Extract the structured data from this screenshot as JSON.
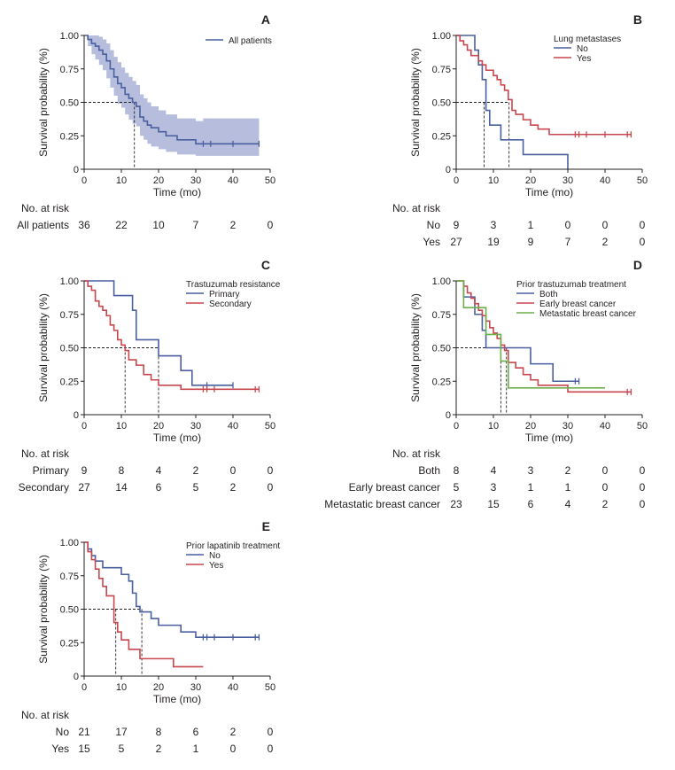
{
  "colors": {
    "blue": "#4a5fa0",
    "red": "#c8474e",
    "green": "#6cae4c",
    "band": "#b7bddc",
    "axis": "#231f20"
  },
  "chart_data": [
    {
      "type": "line",
      "subtype": "kaplan-meier",
      "panel": "A",
      "xlabel": "Time (mo)",
      "ylabel": "Survival probability (%)",
      "xlim": [
        0,
        50
      ],
      "ylim": [
        0,
        1
      ],
      "xticks": [
        "0",
        "10",
        "20",
        "30",
        "40",
        "50"
      ],
      "yticks": [
        "0",
        "0.25",
        "0.50",
        "0.75",
        "1.00"
      ],
      "legend_title": "",
      "series": [
        {
          "name": "All patients",
          "color": "blue",
          "x": [
            0,
            1,
            2,
            3,
            4,
            5,
            6,
            7,
            8,
            9,
            10,
            11,
            12,
            13,
            14,
            15,
            16,
            17,
            18,
            20,
            22,
            25,
            30,
            32,
            34,
            36,
            40,
            47
          ],
          "y": [
            1,
            0.97,
            0.94,
            0.92,
            0.89,
            0.86,
            0.81,
            0.75,
            0.69,
            0.64,
            0.61,
            0.56,
            0.53,
            0.5,
            0.47,
            0.39,
            0.36,
            0.33,
            0.31,
            0.28,
            0.25,
            0.22,
            0.19,
            0.19,
            0.19,
            0.19,
            0.19,
            0.19
          ],
          "censor": [
            32,
            34,
            40,
            47
          ],
          "ci_upper": [
            1,
            1,
            1,
            1,
            0.99,
            0.97,
            0.94,
            0.89,
            0.84,
            0.8,
            0.76,
            0.72,
            0.69,
            0.66,
            0.63,
            0.56,
            0.53,
            0.5,
            0.47,
            0.44,
            0.41,
            0.38,
            0.36,
            0.38,
            0.38,
            0.38,
            0.38,
            0.38
          ],
          "ci_lower": [
            1,
            0.92,
            0.86,
            0.82,
            0.78,
            0.74,
            0.68,
            0.61,
            0.55,
            0.49,
            0.46,
            0.41,
            0.37,
            0.34,
            0.32,
            0.25,
            0.22,
            0.19,
            0.17,
            0.15,
            0.13,
            0.11,
            0.1,
            0.1,
            0.1,
            0.1,
            0.1,
            0.1
          ]
        }
      ],
      "median_lines": [
        13.5
      ],
      "risk_table": {
        "header": "No. at risk",
        "columns": [
          "0",
          "10",
          "20",
          "30",
          "40",
          "50"
        ],
        "rows": [
          {
            "label": "All patients",
            "values": [
              "36",
              "22",
              "10",
              "7",
              "2",
              "0"
            ]
          }
        ]
      }
    },
    {
      "type": "line",
      "subtype": "kaplan-meier",
      "panel": "B",
      "xlabel": "Time (mo)",
      "ylabel": "Survival probability (%)",
      "xlim": [
        0,
        50
      ],
      "ylim": [
        0,
        1
      ],
      "xticks": [
        "0",
        "10",
        "20",
        "30",
        "40",
        "50"
      ],
      "yticks": [
        "0",
        "0.25",
        "0.50",
        "0.75",
        "1.00"
      ],
      "legend_title": "Lung metastases",
      "series": [
        {
          "name": "No",
          "color": "blue",
          "x": [
            0,
            3,
            5,
            6,
            7,
            8,
            9,
            10,
            12,
            15,
            18,
            25,
            30
          ],
          "y": [
            1,
            1,
            0.89,
            0.78,
            0.67,
            0.44,
            0.33,
            0.33,
            0.22,
            0.22,
            0.11,
            0.11,
            0
          ],
          "censor": []
        },
        {
          "name": "Yes",
          "color": "red",
          "x": [
            0,
            1,
            2,
            3,
            4,
            5,
            6,
            7,
            8,
            9,
            10,
            11,
            12,
            13,
            14,
            15,
            16,
            18,
            20,
            22,
            25,
            32,
            33,
            35,
            40,
            46,
            47
          ],
          "y": [
            1,
            0.96,
            0.93,
            0.89,
            0.85,
            0.85,
            0.81,
            0.78,
            0.74,
            0.74,
            0.7,
            0.67,
            0.63,
            0.59,
            0.52,
            0.44,
            0.41,
            0.37,
            0.33,
            0.3,
            0.26,
            0.26,
            0.26,
            0.26,
            0.26,
            0.26,
            0.26
          ],
          "censor": [
            32,
            33,
            35,
            40,
            46,
            47
          ]
        }
      ],
      "median_lines": [
        7.5,
        14.2
      ],
      "risk_table": {
        "header": "No. at risk",
        "columns": [
          "0",
          "10",
          "20",
          "30",
          "40",
          "50"
        ],
        "rows": [
          {
            "label": "No",
            "values": [
              "9",
              "3",
              "1",
              "0",
              "0",
              "0"
            ]
          },
          {
            "label": "Yes",
            "values": [
              "27",
              "19",
              "9",
              "7",
              "2",
              "0"
            ]
          }
        ]
      }
    },
    {
      "type": "line",
      "subtype": "kaplan-meier",
      "panel": "C",
      "xlabel": "Time (mo)",
      "ylabel": "Survival probability (%)",
      "xlim": [
        0,
        50
      ],
      "ylim": [
        0,
        1
      ],
      "xticks": [
        "0",
        "10",
        "20",
        "30",
        "40",
        "50"
      ],
      "yticks": [
        "0",
        "0.25",
        "0.50",
        "0.75",
        "1.00"
      ],
      "legend_title": "Trastuzumab resistance",
      "series": [
        {
          "name": "Primary",
          "color": "blue",
          "x": [
            0,
            8,
            13,
            14,
            20,
            26,
            29,
            33,
            40
          ],
          "y": [
            1,
            0.89,
            0.78,
            0.56,
            0.44,
            0.33,
            0.22,
            0.22,
            0.22
          ],
          "censor": [
            33,
            40
          ]
        },
        {
          "name": "Secondary",
          "color": "red",
          "x": [
            0,
            1,
            2,
            3,
            4,
            5,
            6,
            7,
            8,
            9,
            10,
            11,
            12,
            14,
            16,
            18,
            20,
            22,
            26,
            32,
            33,
            35,
            46,
            47
          ],
          "y": [
            1,
            0.96,
            0.93,
            0.85,
            0.81,
            0.78,
            0.74,
            0.67,
            0.63,
            0.56,
            0.52,
            0.48,
            0.41,
            0.37,
            0.3,
            0.26,
            0.22,
            0.22,
            0.19,
            0.19,
            0.19,
            0.19,
            0.19,
            0.19
          ],
          "censor": [
            32,
            33,
            35,
            46,
            47
          ]
        }
      ],
      "median_lines": [
        11,
        20
      ],
      "risk_table": {
        "header": "No. at risk",
        "columns": [
          "0",
          "10",
          "20",
          "30",
          "40",
          "50"
        ],
        "rows": [
          {
            "label": "Primary",
            "values": [
              "9",
              "8",
              "4",
              "2",
              "0",
              "0"
            ]
          },
          {
            "label": "Secondary",
            "values": [
              "27",
              "14",
              "6",
              "5",
              "2",
              "0"
            ]
          }
        ]
      }
    },
    {
      "type": "line",
      "subtype": "kaplan-meier",
      "panel": "D",
      "xlabel": "Time (mo)",
      "ylabel": "Survival probability (%)",
      "xlim": [
        0,
        50
      ],
      "ylim": [
        0,
        1
      ],
      "xticks": [
        "0",
        "10",
        "20",
        "30",
        "40",
        "50"
      ],
      "yticks": [
        "0",
        "0.25",
        "0.50",
        "0.75",
        "1.00"
      ],
      "legend_title": "Prior trastuzumab treatment",
      "series": [
        {
          "name": "Both",
          "color": "blue",
          "x": [
            0,
            2,
            5,
            7,
            8,
            12,
            14,
            20,
            26,
            30,
            32,
            33
          ],
          "y": [
            1,
            0.88,
            0.75,
            0.63,
            0.5,
            0.5,
            0.5,
            0.38,
            0.25,
            0.25,
            0.25,
            0.25
          ],
          "censor": [
            32,
            33
          ]
        },
        {
          "name": "Early breast cancer",
          "color": "red",
          "x": [
            0,
            2,
            3,
            4,
            5,
            6,
            7,
            8,
            9,
            10,
            11,
            12,
            13,
            14,
            16,
            18,
            20,
            22,
            26,
            30,
            33,
            35,
            46,
            47
          ],
          "y": [
            1,
            0.96,
            0.91,
            0.87,
            0.83,
            0.78,
            0.74,
            0.7,
            0.65,
            0.61,
            0.57,
            0.52,
            0.48,
            0.39,
            0.35,
            0.3,
            0.26,
            0.22,
            0.22,
            0.17,
            0.17,
            0.17,
            0.17,
            0.17
          ],
          "censor": [
            46,
            47
          ]
        },
        {
          "name": "Metastatic breast cancer",
          "color": "green",
          "x": [
            0,
            2,
            6,
            8,
            10,
            12,
            14,
            40
          ],
          "y": [
            1,
            0.8,
            0.8,
            0.6,
            0.6,
            0.4,
            0.2,
            0.2
          ],
          "censor": []
        }
      ],
      "median_lines": [
        12,
        13.5
      ],
      "risk_table": {
        "header": "No. at risk",
        "columns": [
          "0",
          "10",
          "20",
          "30",
          "40",
          "50"
        ],
        "rows": [
          {
            "label": "Both",
            "values": [
              "8",
              "4",
              "3",
              "2",
              "0",
              "0"
            ]
          },
          {
            "label": "Early breast cancer",
            "values": [
              "5",
              "3",
              "1",
              "1",
              "0",
              "0"
            ]
          },
          {
            "label": "Metastatic breast cancer",
            "values": [
              "23",
              "15",
              "6",
              "4",
              "2",
              "0"
            ]
          }
        ]
      }
    },
    {
      "type": "line",
      "subtype": "kaplan-meier",
      "panel": "E",
      "xlabel": "Time (mo)",
      "ylabel": "Survival probability (%)",
      "xlim": [
        0,
        50
      ],
      "ylim": [
        0,
        1
      ],
      "xticks": [
        "0",
        "10",
        "20",
        "30",
        "40",
        "50"
      ],
      "yticks": [
        "0",
        "0.25",
        "0.50",
        "0.75",
        "1.00"
      ],
      "legend_title": "Prior lapatinib treatment",
      "series": [
        {
          "name": "No",
          "color": "blue",
          "x": [
            0,
            1,
            2,
            3,
            5,
            7,
            10,
            12,
            13,
            14,
            15,
            16,
            18,
            20,
            22,
            26,
            30,
            32,
            33,
            35,
            40,
            46,
            47
          ],
          "y": [
            1,
            0.95,
            0.9,
            0.86,
            0.81,
            0.81,
            0.76,
            0.71,
            0.62,
            0.52,
            0.48,
            0.48,
            0.43,
            0.38,
            0.38,
            0.33,
            0.29,
            0.29,
            0.29,
            0.29,
            0.29,
            0.29,
            0.29
          ],
          "censor": [
            32,
            33,
            35,
            40,
            46,
            47
          ]
        },
        {
          "name": "Yes",
          "color": "red",
          "x": [
            0,
            1,
            2,
            3,
            4,
            5,
            6,
            8,
            9,
            10,
            12,
            15,
            20,
            24,
            32
          ],
          "y": [
            1,
            0.93,
            0.87,
            0.8,
            0.73,
            0.67,
            0.6,
            0.4,
            0.33,
            0.27,
            0.2,
            0.13,
            0.13,
            0.07,
            0.07
          ],
          "censor": []
        }
      ],
      "median_lines": [
        8.5,
        15.5
      ],
      "risk_table": {
        "header": "No. at risk",
        "columns": [
          "0",
          "10",
          "20",
          "30",
          "40",
          "50"
        ],
        "rows": [
          {
            "label": "No",
            "values": [
              "21",
              "17",
              "8",
              "6",
              "2",
              "0"
            ]
          },
          {
            "label": "Yes",
            "values": [
              "15",
              "5",
              "2",
              "1",
              "0",
              "0"
            ]
          }
        ]
      }
    }
  ]
}
